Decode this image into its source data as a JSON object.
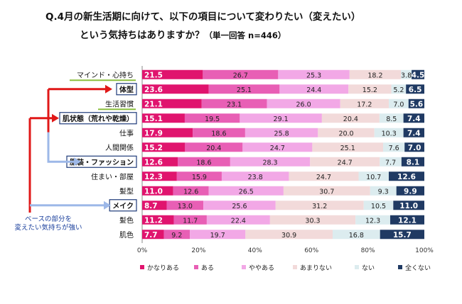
{
  "title_line1": "Q.4月の新生活期に向けて、以下の項目について変わりたい（変えたい）",
  "title_line2": "という気持ちはありますか？",
  "title_suffix": "（単一回答 n=446）",
  "note_line1": "ベースの部分を",
  "note_line2": "変えたい気持ちが強い",
  "colors": {
    "series": [
      "#e0146e",
      "#e85fb5",
      "#f2a8e6",
      "#f2dada",
      "#dcecef",
      "#203a63"
    ],
    "label_text": [
      "#ffffff",
      "#222222",
      "#222222",
      "#222222",
      "#222222",
      "#ffffff"
    ],
    "highlight_box": "#1f3b7a",
    "green_underline": "#8cbf3f",
    "red_arrow": "#e01818",
    "blue_arrow": "#9db8e8"
  },
  "chart_data": {
    "type": "bar",
    "orientation": "horizontal",
    "stacked": true,
    "categories": [
      "マインド・心持ち",
      "体型",
      "生活習慣",
      "肌状態（荒れや乾燥）",
      "仕事",
      "人間関係",
      "服装・ファッション",
      "住まい・部屋",
      "髪型",
      "メイク",
      "髪色",
      "肌色"
    ],
    "highlighted_categories": [
      "体型",
      "肌状態（荒れや乾燥）",
      "服装・ファッション",
      "メイク"
    ],
    "underlined_categories": [
      "マインド・心持ち",
      "生活習慣"
    ],
    "series": [
      {
        "name": "かなりある",
        "values": [
          21.5,
          23.6,
          21.1,
          15.1,
          17.9,
          15.2,
          12.6,
          12.3,
          11.0,
          8.7,
          11.2,
          7.7
        ]
      },
      {
        "name": "ある",
        "values": [
          26.7,
          25.1,
          23.1,
          19.5,
          18.6,
          20.4,
          18.6,
          15.9,
          12.6,
          13.0,
          11.7,
          9.2
        ]
      },
      {
        "name": "ややある",
        "values": [
          25.3,
          24.4,
          26.0,
          29.1,
          25.8,
          24.7,
          28.3,
          23.8,
          26.5,
          25.6,
          22.4,
          19.7
        ]
      },
      {
        "name": "あまりない",
        "values": [
          18.2,
          15.2,
          17.2,
          20.4,
          20.0,
          25.1,
          24.7,
          24.7,
          30.7,
          31.2,
          30.3,
          30.9
        ]
      },
      {
        "name": "ない",
        "values": [
          3.8,
          5.2,
          7.0,
          8.5,
          10.3,
          7.6,
          7.7,
          10.7,
          9.3,
          10.5,
          12.3,
          16.8
        ]
      },
      {
        "name": "全くない",
        "values": [
          4.5,
          6.5,
          5.6,
          7.4,
          7.4,
          7.0,
          8.1,
          12.6,
          9.9,
          11.0,
          12.1,
          15.7
        ]
      }
    ],
    "value_labels": [
      [
        "21.5",
        "26.7",
        "25.3",
        "18.2",
        "3.8",
        "4.5"
      ],
      [
        "23.6",
        "25.1",
        "24.4",
        "15.2",
        "5.2",
        "6.5"
      ],
      [
        "21.1",
        "23.1",
        "26.0",
        "17.2",
        "7.0",
        "5.6"
      ],
      [
        "15.1",
        "19.5",
        "29.1",
        "20.4",
        "8.5",
        "7.4"
      ],
      [
        "17.9",
        "18.6",
        "25.8",
        "20.0",
        "10.3",
        "7.4"
      ],
      [
        "15.2",
        "20.4",
        "24.7",
        "25.1",
        "7.6",
        "7.0"
      ],
      [
        "12.6",
        "18.6",
        "28.3",
        "24.7",
        "7.7",
        "8.1"
      ],
      [
        "12.3",
        "15.9",
        "23.8",
        "24.7",
        "10.7",
        "12.6"
      ],
      [
        "11.0",
        "12.6",
        "26.5",
        "30.7",
        "9.3",
        "9.9"
      ],
      [
        "8.7",
        "13.0",
        "25.6",
        "31.2",
        "10.5",
        "11.0"
      ],
      [
        "11.2",
        "11.7",
        "22.4",
        "30.3",
        "12.3",
        "12.1"
      ],
      [
        "7.7",
        "9.2",
        "19.7",
        "30.9",
        "16.8",
        "15.7"
      ]
    ],
    "xlim": [
      0,
      100
    ],
    "x_ticks": [
      "0%",
      "20%",
      "40%",
      "60%",
      "80%",
      "100%"
    ],
    "legend_position": "bottom"
  }
}
